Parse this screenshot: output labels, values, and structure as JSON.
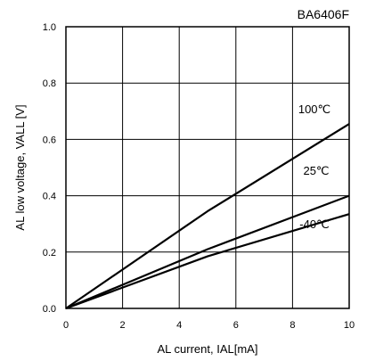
{
  "chart_data": {
    "type": "line",
    "title": "BA6406F",
    "xlabel": "AL current, IAL[mA]",
    "ylabel": "AL low voltage, VALL [V]",
    "xlim": [
      0,
      10
    ],
    "ylim": [
      0,
      1.0
    ],
    "x_ticks": [
      0,
      2,
      4,
      6,
      8,
      10
    ],
    "y_ticks": [
      0.0,
      0.2,
      0.4,
      0.6,
      0.8,
      1.0
    ],
    "x_tick_labels": [
      "0",
      "2",
      "4",
      "6",
      "8",
      "10"
    ],
    "y_tick_labels": [
      "0.0",
      "0.2",
      "0.4",
      "0.6",
      "0.8",
      "1.0"
    ],
    "grid": true,
    "legend": "inline labels near lines",
    "series": [
      {
        "name": "100℃",
        "x": [
          0,
          5,
          10
        ],
        "y": [
          0,
          0.345,
          0.655
        ]
      },
      {
        "name": "25℃",
        "x": [
          0,
          5,
          10
        ],
        "y": [
          0,
          0.21,
          0.4
        ]
      },
      {
        "name": "-40℃",
        "x": [
          0,
          5,
          10
        ],
        "y": [
          0,
          0.185,
          0.335
        ]
      }
    ]
  }
}
